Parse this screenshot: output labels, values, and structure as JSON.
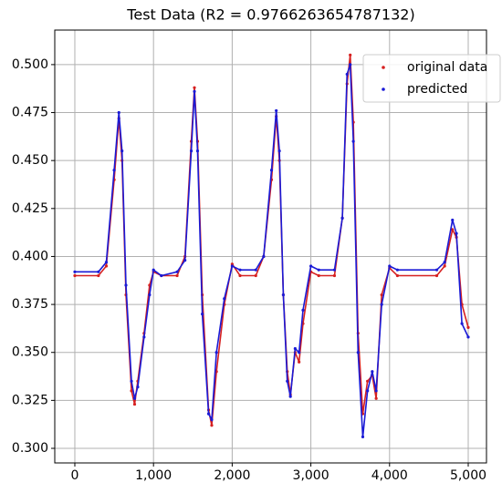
{
  "chart_data": {
    "type": "scatter",
    "title": "Test Data (R2 = 0.9766263654787132)",
    "x": [
      0,
      300,
      400,
      500,
      560,
      600,
      650,
      720,
      760,
      800,
      880,
      950,
      1000,
      1100,
      1300,
      1400,
      1480,
      1520,
      1560,
      1620,
      1700,
      1740,
      1800,
      1900,
      2000,
      2100,
      2300,
      2400,
      2500,
      2560,
      2600,
      2650,
      2700,
      2740,
      2800,
      2850,
      2900,
      3000,
      3100,
      3300,
      3400,
      3460,
      3500,
      3540,
      3600,
      3660,
      3720,
      3780,
      3830,
      3900,
      4000,
      4100,
      4600,
      4700,
      4800,
      4850,
      4920,
      5000
    ],
    "series": [
      {
        "name": "original data",
        "color": "#d62020",
        "values": [
          0.39,
          0.39,
          0.395,
          0.44,
          0.472,
          0.45,
          0.38,
          0.33,
          0.323,
          0.335,
          0.36,
          0.385,
          0.392,
          0.39,
          0.39,
          0.4,
          0.46,
          0.488,
          0.46,
          0.38,
          0.32,
          0.312,
          0.34,
          0.375,
          0.396,
          0.39,
          0.39,
          0.4,
          0.44,
          0.473,
          0.45,
          0.38,
          0.34,
          0.328,
          0.35,
          0.345,
          0.365,
          0.392,
          0.39,
          0.39,
          0.42,
          0.49,
          0.505,
          0.47,
          0.36,
          0.318,
          0.335,
          0.338,
          0.326,
          0.38,
          0.394,
          0.39,
          0.39,
          0.395,
          0.414,
          0.41,
          0.375,
          0.363
        ]
      },
      {
        "name": "predicted",
        "color": "#1a1ad6",
        "values": [
          0.392,
          0.392,
          0.397,
          0.445,
          0.475,
          0.455,
          0.385,
          0.335,
          0.326,
          0.332,
          0.358,
          0.38,
          0.393,
          0.39,
          0.392,
          0.398,
          0.455,
          0.486,
          0.455,
          0.37,
          0.318,
          0.315,
          0.35,
          0.378,
          0.395,
          0.393,
          0.393,
          0.4,
          0.445,
          0.476,
          0.455,
          0.38,
          0.335,
          0.327,
          0.352,
          0.35,
          0.372,
          0.395,
          0.393,
          0.393,
          0.42,
          0.495,
          0.5,
          0.46,
          0.35,
          0.306,
          0.33,
          0.34,
          0.33,
          0.375,
          0.395,
          0.393,
          0.393,
          0.397,
          0.419,
          0.412,
          0.365,
          0.358
        ]
      }
    ],
    "xlim": [
      -255,
      5232
    ],
    "ylim": [
      0.2924,
      0.518
    ],
    "xticks": [
      0,
      {
        "value": 1000,
        "label": "1,000"
      },
      {
        "value": 2000,
        "label": "2,000"
      },
      {
        "value": 3000,
        "label": "3,000"
      },
      {
        "value": 4000,
        "label": "4,000"
      },
      {
        "value": 5000,
        "label": "5,000"
      }
    ],
    "yticks": [
      {
        "value": 0.3,
        "label": "0.300"
      },
      0.325,
      {
        "value": 0.35,
        "label": "0.350"
      },
      0.375,
      {
        "value": 0.4,
        "label": "0.400"
      },
      0.425,
      {
        "value": 0.45,
        "label": "0.450"
      },
      0.475,
      {
        "value": 0.5,
        "label": "0.500"
      }
    ],
    "grid": true,
    "legend": "upper right"
  }
}
